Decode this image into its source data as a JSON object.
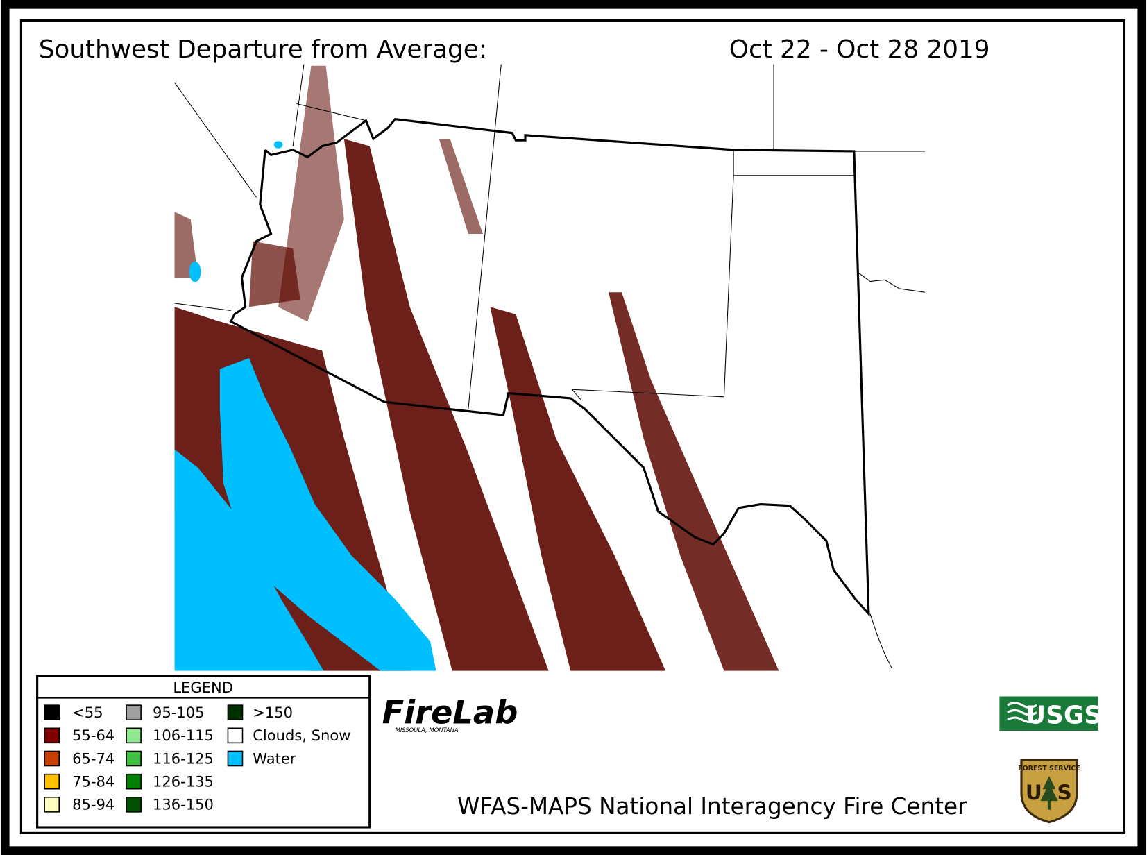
{
  "header": {
    "title": "Southwest Departure from Average:",
    "date": "Oct 22 - Oct 28 2019"
  },
  "legend": {
    "title": "LEGEND",
    "items": [
      {
        "label": "<55",
        "color": "#000000"
      },
      {
        "label": "55-64",
        "color": "#800000"
      },
      {
        "label": "65-74",
        "color": "#c84000"
      },
      {
        "label": "75-84",
        "color": "#ffc000"
      },
      {
        "label": "85-94",
        "color": "#ffffc0"
      },
      {
        "label": "95-105",
        "color": "#a0a0a0"
      },
      {
        "label": "106-115",
        "color": "#90e890"
      },
      {
        "label": "116-125",
        "color": "#40c040"
      },
      {
        "label": "126-135",
        "color": "#008000"
      },
      {
        "label": "136-150",
        "color": "#005000"
      },
      {
        "label": ">150",
        "color": "#003000"
      },
      {
        "label": "Clouds, Snow",
        "color": "#ffffff"
      },
      {
        "label": "Water",
        "color": "#00bfff"
      }
    ]
  },
  "logos": {
    "firelab": "FireLab",
    "firelab_sub": "MISSOULA, MONTANA",
    "usgs": "USGS",
    "badge_top": "FOREST SERVICE",
    "badge_left": "U",
    "badge_right": "S"
  },
  "footer": "WFAS-MAPS  National Interagency Fire Center"
}
